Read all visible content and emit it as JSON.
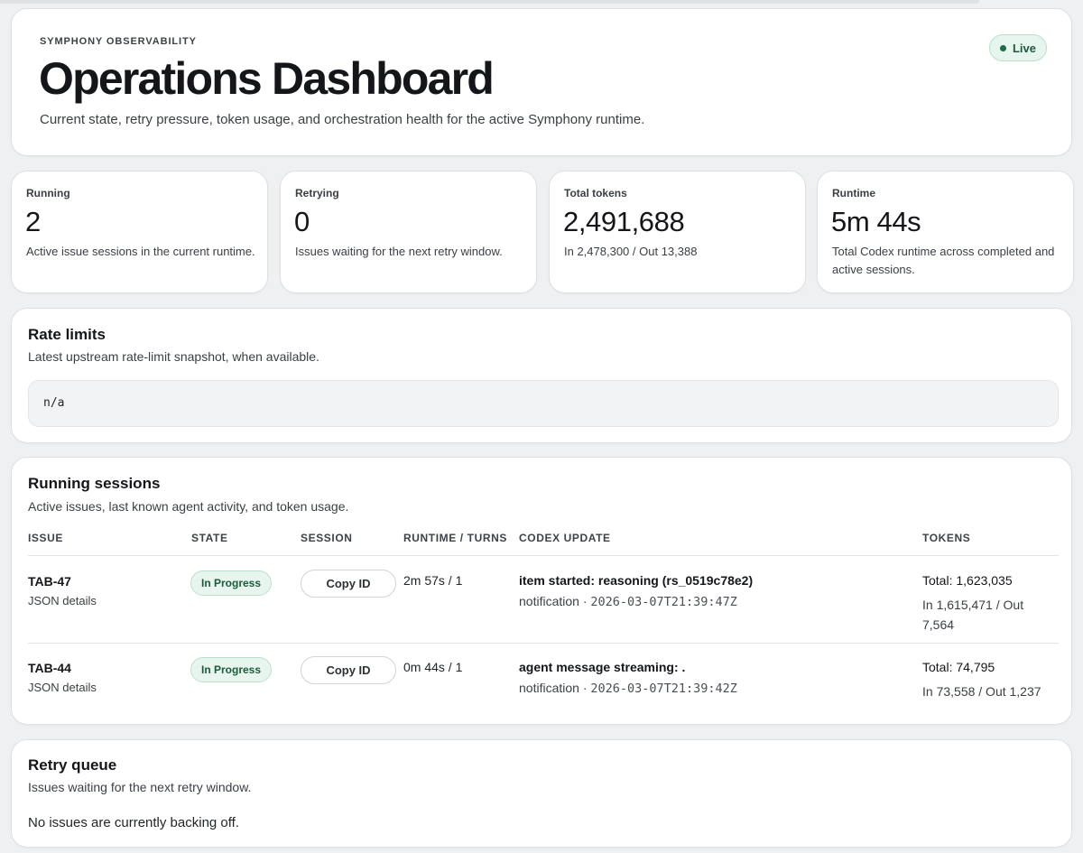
{
  "hero": {
    "eyebrow": "SYMPHONY OBSERVABILITY",
    "title": "Operations Dashboard",
    "subtitle": "Current state, retry pressure, token usage, and orchestration health for the active Symphony runtime.",
    "status_label": "Live"
  },
  "stats": [
    {
      "label": "Running",
      "value": "2",
      "desc": "Active issue sessions in the current runtime."
    },
    {
      "label": "Retrying",
      "value": "0",
      "desc": "Issues waiting for the next retry window."
    },
    {
      "label": "Total tokens",
      "value": "2,491,688",
      "desc": "In 2,478,300 / Out 13,388"
    },
    {
      "label": "Runtime",
      "value": "5m 44s",
      "desc": "Total Codex runtime across completed and active sessions."
    }
  ],
  "rate_limits": {
    "title": "Rate limits",
    "subtitle": "Latest upstream rate-limit snapshot, when available.",
    "snapshot": "n/a"
  },
  "sessions": {
    "title": "Running sessions",
    "subtitle": "Active issues, last known agent activity, and token usage.",
    "columns": {
      "issue": "ISSUE",
      "state": "STATE",
      "session": "SESSION",
      "runtime": "RUNTIME / TURNS",
      "update": "CODEX UPDATE",
      "tokens": "TOKENS"
    },
    "rows": [
      {
        "issue": "TAB-47",
        "details_link": "JSON details",
        "state": "In Progress",
        "session_button": "Copy ID",
        "runtime": "2m 57s / 1",
        "update_message": "item started: reasoning (rs_0519c78e2)",
        "update_kind": "notification · ",
        "update_time": "2026-03-07T21:39:47Z",
        "tokens_total": "Total: 1,623,035",
        "tokens_split": "In 1,615,471 / Out 7,564"
      },
      {
        "issue": "TAB-44",
        "details_link": "JSON details",
        "state": "In Progress",
        "session_button": "Copy ID",
        "runtime": "0m 44s / 1",
        "update_message": "agent message streaming: .",
        "update_kind": "notification · ",
        "update_time": "2026-03-07T21:39:42Z",
        "tokens_total": "Total: 74,795",
        "tokens_split": "In 73,558 / Out 1,237"
      }
    ]
  },
  "retry_queue": {
    "title": "Retry queue",
    "subtitle": "Issues waiting for the next retry window.",
    "empty_message": "No issues are currently backing off."
  },
  "colors": {
    "page_bg": "#eef0f1",
    "card_bg": "#ffffff",
    "accent_green": "#1f6b43",
    "badge_bg": "#e7f5ee"
  },
  "icons": {
    "live_indicator": "status-dot-icon"
  }
}
